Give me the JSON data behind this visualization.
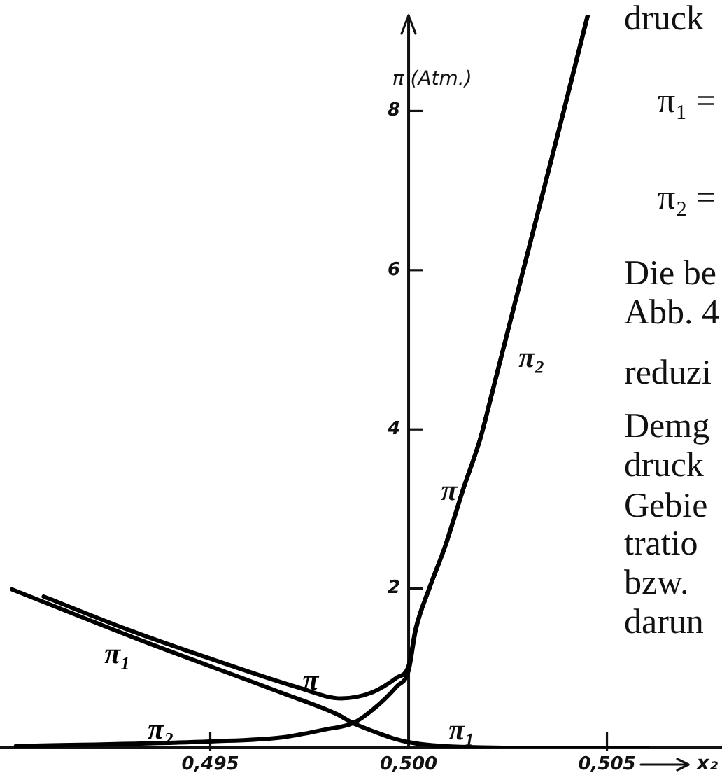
{
  "chart_data": {
    "type": "line",
    "xlabel": "x₂",
    "ylabel": "π (Atm.)",
    "xlim": [
      0.4897,
      0.5079
    ],
    "ylim": [
      0,
      9.2
    ],
    "xticks": [
      {
        "value": 0.495,
        "label": "0,495"
      },
      {
        "value": 0.5,
        "label": "0,500"
      },
      {
        "value": 0.505,
        "label": "0,505"
      }
    ],
    "yticks": [
      2,
      4,
      6,
      8
    ],
    "marker": "none",
    "series": [
      {
        "name": "π₁",
        "color": "#000000",
        "x": [
          0.49,
          0.4932,
          0.4968,
          0.4982,
          0.4986,
          0.4992,
          0.4996,
          0.5,
          0.5006,
          0.5013,
          0.5024,
          0.506
        ],
        "values": [
          1.99,
          1.36,
          0.69,
          0.42,
          0.31,
          0.19,
          0.12,
          0.07,
          0.03,
          0.01,
          0,
          0
        ]
      },
      {
        "name": "π",
        "color": "#000000",
        "x": [
          0.4908,
          0.493,
          0.495,
          0.4972,
          0.4983,
          0.4991,
          0.4997,
          0.5,
          0.50018,
          0.50052,
          0.50092,
          0.50137,
          0.50181,
          0.50211,
          0.50289,
          0.50391,
          0.50451
        ],
        "values": [
          1.9,
          1.47,
          1.12,
          0.76,
          0.62,
          0.7,
          0.88,
          1.03,
          1.5,
          2.0,
          2.53,
          3.24,
          3.89,
          4.47,
          6.0,
          8.0,
          9.19
        ]
      },
      {
        "name": "π₂",
        "color": "#000000",
        "x": [
          0.4901,
          0.495,
          0.4968,
          0.4979,
          0.4986,
          0.4991,
          0.4997,
          0.5,
          0.50018,
          0.50052,
          0.50092,
          0.50137,
          0.50181,
          0.50211,
          0.50289,
          0.50391,
          0.50451
        ],
        "values": [
          0.02,
          0.08,
          0.13,
          0.23,
          0.31,
          0.48,
          0.77,
          0.97,
          1.48,
          2.0,
          2.53,
          3.24,
          3.89,
          4.47,
          6.0,
          8.0,
          9.19
        ]
      }
    ],
    "annotations": [
      "π₁",
      "π",
      "π₂",
      "druck",
      "π₁ =",
      "π₂ =",
      "Die be",
      "Abb. 4",
      "reduzi",
      "Demg",
      "druck",
      "Gebie",
      "tratio",
      "bzw.",
      "darun"
    ]
  }
}
